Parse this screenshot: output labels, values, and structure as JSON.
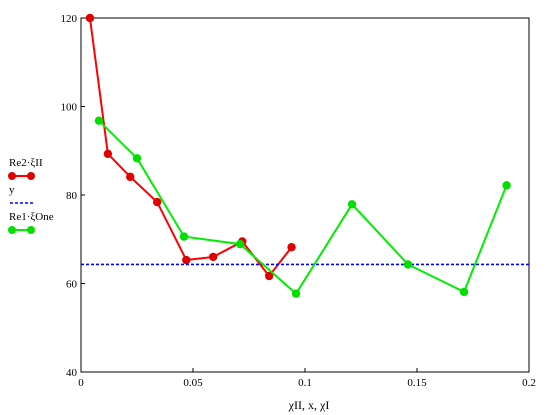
{
  "chart_data": {
    "type": "line",
    "xlabel": "χII, x, χI",
    "ylabel": "",
    "xlim": [
      0,
      0.2
    ],
    "ylim": [
      40,
      120
    ],
    "x_ticks": [
      "0",
      "0.05",
      "0.1",
      "0.15",
      "0.2"
    ],
    "y_ticks": [
      "40",
      "60",
      "80",
      "100",
      "120"
    ],
    "grid": false,
    "legend_placement": "left",
    "series": [
      {
        "name": "Re2·ξII",
        "color": "#ff0000",
        "marker_color": "#e00000",
        "style": "solid-with-markers",
        "x": [
          0.004,
          0.012,
          0.022,
          0.034,
          0.047,
          0.059,
          0.072,
          0.084,
          0.094
        ],
        "y": [
          120,
          89.3,
          84.1,
          78.4,
          65.3,
          66.0,
          69.5,
          61.7,
          68.2
        ]
      },
      {
        "name": "y",
        "color": "#0000ff",
        "style": "dotted",
        "x": [
          0,
          0.2
        ],
        "y": [
          64.3,
          64.3
        ]
      },
      {
        "name": "Re1·ξOne",
        "color": "#00ee00",
        "marker_color": "#00e000",
        "style": "solid-with-markers",
        "x": [
          0.008,
          0.025,
          0.046,
          0.071,
          0.096,
          0.121,
          0.146,
          0.171,
          0.19
        ],
        "y": [
          96.8,
          88.3,
          70.6,
          68.9,
          57.7,
          77.9,
          64.3,
          58.1,
          82.2
        ]
      }
    ]
  }
}
